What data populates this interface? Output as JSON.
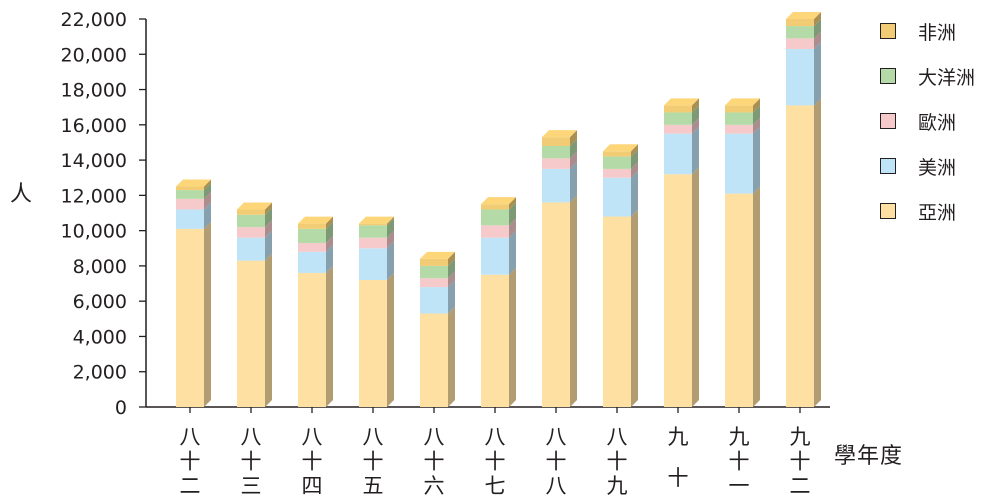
{
  "chart_data": {
    "type": "bar",
    "stacked": true,
    "categories": [
      "八十二",
      "八十三",
      "八十四",
      "八十五",
      "八十六",
      "八十七",
      "八十八",
      "八十九",
      "九十",
      "九十一",
      "九十二"
    ],
    "series": [
      {
        "name": "亞洲",
        "color": "#fde0a2",
        "values": [
          10100,
          8300,
          7600,
          7200,
          5300,
          7500,
          11600,
          10800,
          13200,
          12100,
          17100
        ]
      },
      {
        "name": "美洲",
        "color": "#bfe4f7",
        "values": [
          1100,
          1300,
          1200,
          1800,
          1500,
          2100,
          1900,
          2200,
          2300,
          3400,
          3200
        ]
      },
      {
        "name": "歐洲",
        "color": "#f6caca",
        "values": [
          600,
          600,
          500,
          600,
          500,
          700,
          600,
          500,
          500,
          500,
          600
        ]
      },
      {
        "name": "大洋洲",
        "color": "#b4dba7",
        "values": [
          500,
          700,
          800,
          700,
          700,
          900,
          700,
          700,
          700,
          700,
          700
        ]
      },
      {
        "name": "非洲",
        "color": "#f1cc74",
        "values": [
          200,
          300,
          300,
          100,
          400,
          300,
          500,
          300,
          400,
          400,
          400
        ]
      }
    ],
    "ylabel": "人",
    "xlabel": "學年度",
    "ylim": [
      0,
      22000
    ],
    "yticks": [
      "0",
      "2,000",
      "4,000",
      "6,000",
      "8,000",
      "10,000",
      "12,000",
      "14,000",
      "16,000",
      "18,000",
      "20,000",
      "22,000"
    ],
    "legend_order": [
      "非洲",
      "大洋洲",
      "歐洲",
      "美洲",
      "亞洲"
    ],
    "legend_position": "right",
    "grid": false
  }
}
